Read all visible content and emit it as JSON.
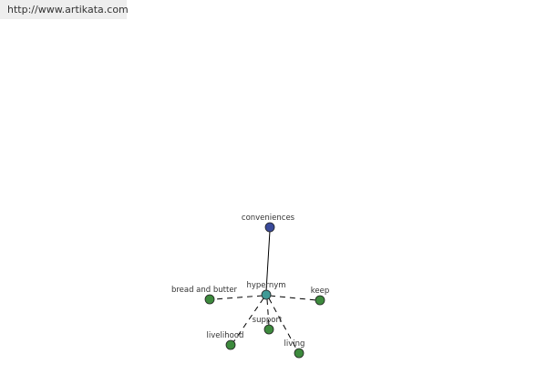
{
  "watermark": {
    "url": "http://www.artikata.com"
  },
  "graph": {
    "root": {
      "label": "conveniences",
      "color": "#3a4a9a"
    },
    "center": {
      "label": "hypernym",
      "color": "#3f9a96"
    },
    "neighbors": [
      {
        "label": "bread and butter",
        "color": "#3d8a3d"
      },
      {
        "label": "keep",
        "color": "#3d8a3d"
      },
      {
        "label": "support",
        "color": "#3d8a3d"
      },
      {
        "label": "livelihood",
        "color": "#3d8a3d"
      },
      {
        "label": "living",
        "color": "#3d8a3d"
      }
    ]
  }
}
